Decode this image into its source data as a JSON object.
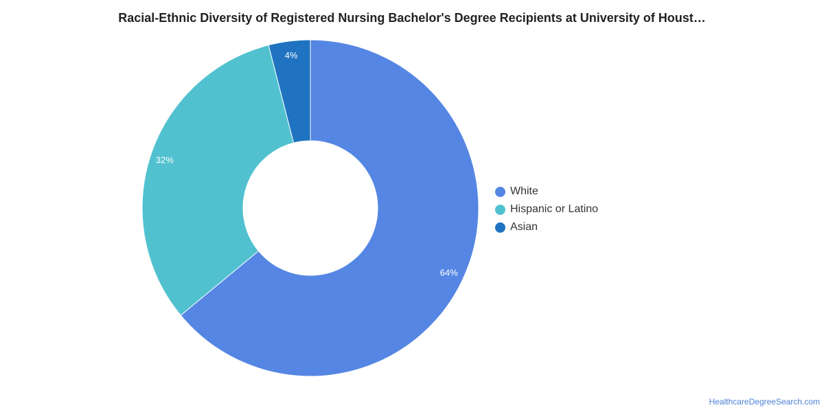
{
  "chart_data": {
    "type": "pie",
    "title": "Racial-Ethnic Diversity of Registered Nursing Bachelor's Degree Recipients at University of Houst…",
    "categories": [
      "White",
      "Hispanic or Latino",
      "Asian"
    ],
    "values": [
      64,
      32,
      4
    ],
    "value_labels": [
      "64%",
      "32%",
      "4%"
    ],
    "colors": [
      "#5586e3",
      "#51c1cf",
      "#1f73c0"
    ],
    "donut": true,
    "legend_position": "right"
  },
  "watermark": "HealthcareDegreeSearch.com"
}
